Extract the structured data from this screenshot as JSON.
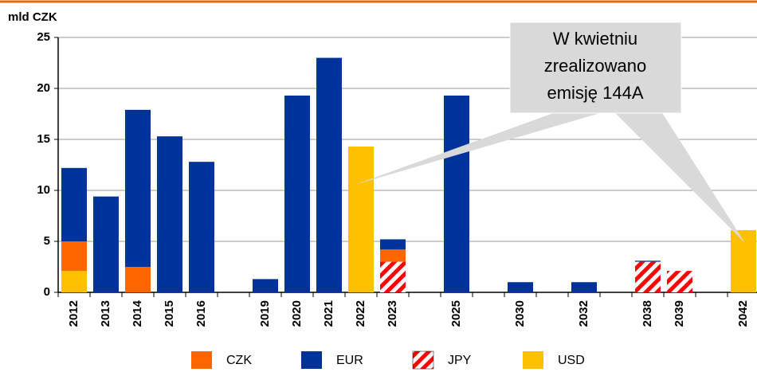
{
  "chart_data": {
    "type": "stacked_bar",
    "y_axis_label": "mld CZK",
    "categories": [
      "2012",
      "2013",
      "2014",
      "2015",
      "2016",
      null,
      "2019",
      "2020",
      "2021",
      "2022",
      "2023",
      null,
      "2025",
      null,
      "2030",
      null,
      "2032",
      null,
      "2038",
      "2039",
      null,
      "2042"
    ],
    "series": [
      {
        "name": "CZK",
        "color": "#ff6600",
        "values": [
          2.9,
          0,
          2.5,
          0,
          0,
          null,
          0,
          0,
          0,
          0,
          1.2,
          null,
          0,
          null,
          0,
          null,
          0,
          null,
          0,
          0,
          null,
          0
        ]
      },
      {
        "name": "EUR",
        "color": "#003399",
        "values": [
          7.2,
          9.4,
          15.4,
          15.3,
          12.8,
          null,
          1.3,
          19.3,
          23.0,
          0,
          1.0,
          null,
          19.3,
          null,
          1.0,
          null,
          1.0,
          null,
          0.1,
          0,
          null,
          0
        ]
      },
      {
        "name": "JPY",
        "color": "#ff0000",
        "pattern": "hatch",
        "values": [
          0,
          0,
          0,
          0,
          0,
          null,
          0,
          0,
          0,
          0,
          3.0,
          null,
          0,
          null,
          0,
          null,
          0,
          null,
          3.0,
          2.1,
          null,
          0
        ]
      },
      {
        "name": "USD",
        "color": "#ffc000",
        "values": [
          2.1,
          0,
          0,
          0,
          0,
          null,
          0,
          0,
          0,
          14.3,
          0,
          null,
          0,
          null,
          0,
          null,
          0,
          null,
          0,
          0,
          null,
          6.1
        ]
      }
    ],
    "ylim": [
      0,
      25
    ],
    "yticks": [
      0,
      5,
      10,
      15,
      20,
      25
    ],
    "grid": true,
    "annotation": {
      "lines": [
        "W kwietniu",
        "zrealizowano",
        "emisję 144A"
      ]
    }
  }
}
